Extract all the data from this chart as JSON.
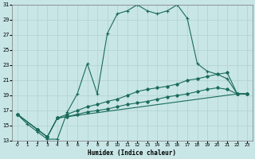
{
  "xlabel": "Humidex (Indice chaleur)",
  "ylabel": "",
  "bg_color": "#c8e6e6",
  "grid_color": "#b0d0d0",
  "line_color": "#1a6b5a",
  "xlim": [
    -0.5,
    23.5
  ],
  "ylim": [
    13,
    31
  ],
  "xticks": [
    0,
    1,
    2,
    3,
    4,
    5,
    6,
    7,
    8,
    9,
    10,
    11,
    12,
    13,
    14,
    15,
    16,
    17,
    18,
    19,
    20,
    21,
    22,
    23
  ],
  "yticks": [
    13,
    15,
    17,
    19,
    21,
    23,
    25,
    27,
    29,
    31
  ],
  "line1_x": [
    0,
    1,
    2,
    3,
    4,
    5,
    6,
    7,
    8,
    9,
    10,
    11,
    12,
    13,
    14,
    15,
    16,
    17,
    18,
    19,
    20,
    21,
    22,
    23
  ],
  "line1_y": [
    16.5,
    15.2,
    14.2,
    13.2,
    13.2,
    16.8,
    19.2,
    23.2,
    19.2,
    27.2,
    29.8,
    30.2,
    31.0,
    30.2,
    29.8,
    30.2,
    31.0,
    29.2,
    23.2,
    22.2,
    21.8,
    21.2,
    19.2,
    19.2
  ],
  "line2_x": [
    0,
    2,
    3,
    4,
    5,
    6,
    7,
    8,
    9,
    10,
    11,
    12,
    13,
    14,
    15,
    16,
    17,
    18,
    19,
    20,
    21,
    22,
    23
  ],
  "line2_y": [
    16.5,
    14.5,
    13.5,
    16.0,
    16.5,
    17.0,
    17.5,
    17.8,
    18.2,
    18.5,
    19.0,
    19.5,
    19.8,
    20.0,
    20.2,
    20.5,
    21.0,
    21.2,
    21.5,
    21.8,
    22.0,
    19.2,
    19.2
  ],
  "line3_x": [
    0,
    2,
    3,
    4,
    5,
    6,
    7,
    8,
    9,
    10,
    11,
    12,
    13,
    14,
    15,
    16,
    17,
    18,
    19,
    20,
    21,
    22,
    23
  ],
  "line3_y": [
    16.5,
    14.5,
    13.5,
    16.0,
    16.2,
    16.5,
    16.8,
    17.0,
    17.2,
    17.5,
    17.8,
    18.0,
    18.2,
    18.5,
    18.8,
    19.0,
    19.2,
    19.5,
    19.8,
    20.0,
    19.8,
    19.2,
    19.2
  ],
  "line4_x": [
    0,
    2,
    3,
    4,
    22,
    23
  ],
  "line4_y": [
    16.5,
    14.5,
    13.5,
    16.0,
    19.2,
    19.2
  ]
}
